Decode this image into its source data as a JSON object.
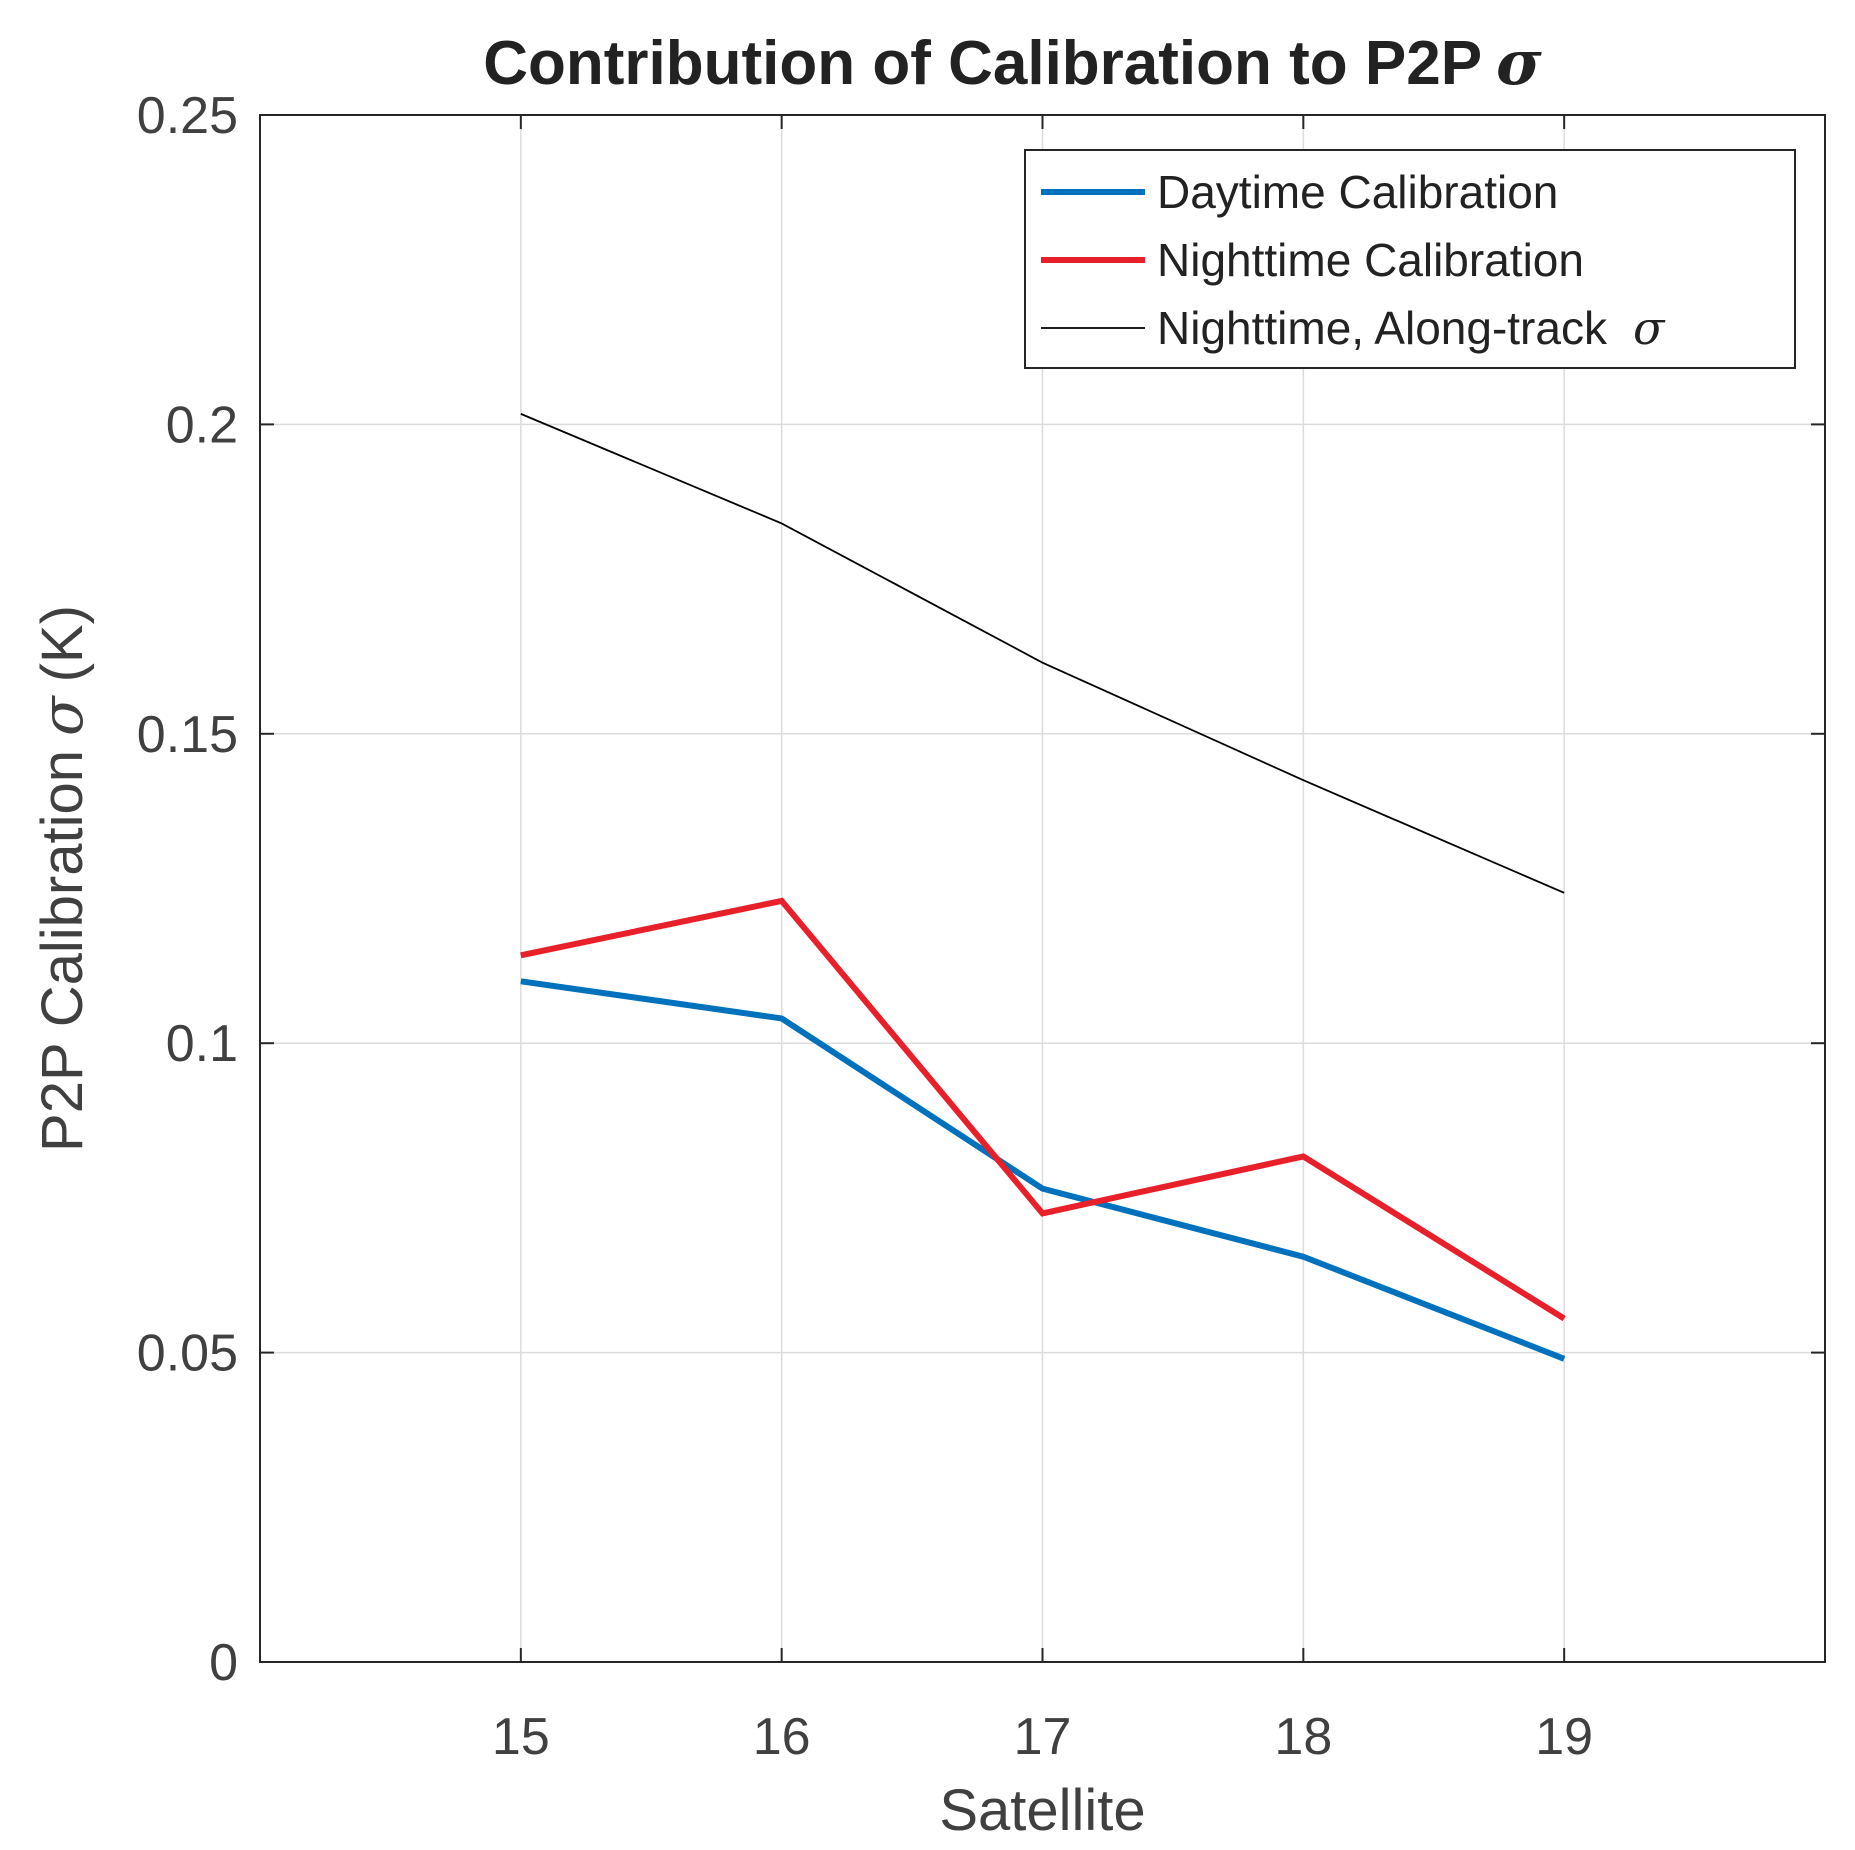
{
  "chart_data": {
    "type": "line",
    "title": "Contribution of Calibration to P2P",
    "title_symbol": "σ",
    "xlabel": "Satellite",
    "ylabel": "P2P Calibration",
    "ylabel_symbol": "σ",
    "ylabel_unit": "(K)",
    "x": [
      15,
      16,
      17,
      18,
      19
    ],
    "xlim": [
      14,
      20
    ],
    "ylim": [
      0,
      0.25
    ],
    "xticks": [
      15,
      16,
      17,
      18,
      19
    ],
    "xtick_labels": [
      "15",
      "16",
      "17",
      "18",
      "19"
    ],
    "yticks": [
      0,
      0.05,
      0.1,
      0.15,
      0.2,
      0.25
    ],
    "ytick_labels": [
      "0",
      "0.05",
      "0.1",
      "0.15",
      "0.2",
      "0.25"
    ],
    "grid": true,
    "legend_position": "top-right",
    "series": [
      {
        "name": "Daytime Calibration",
        "color": "#0072BD",
        "style": "thick",
        "values": [
          0.11,
          0.104,
          0.0765,
          0.0655,
          0.049
        ]
      },
      {
        "name": "Nighttime Calibration",
        "color": "#E8202A",
        "style": "thick",
        "values": [
          0.1142,
          0.123,
          0.0725,
          0.0817,
          0.0555
        ]
      },
      {
        "name": "Nighttime, Along-track",
        "name_symbol": "σ",
        "color": "#000000",
        "style": "thin",
        "values": [
          0.2017,
          0.184,
          0.1615,
          0.1425,
          0.1243
        ]
      }
    ]
  }
}
